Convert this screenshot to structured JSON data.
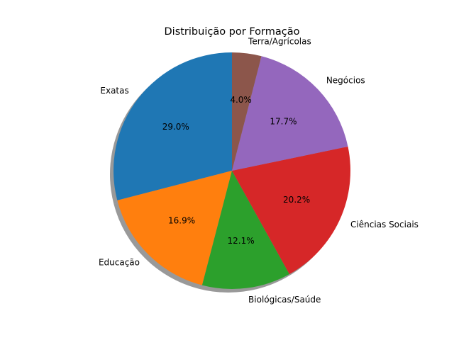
{
  "chart_data": {
    "type": "pie",
    "title": "Distribuição por Formação",
    "labels": [
      "Exatas",
      "Educação",
      "Biológicas/Saúde",
      "Ciências Sociais",
      "Negócios",
      "Terra/Agrícolas"
    ],
    "values": [
      29.0,
      16.9,
      12.1,
      20.2,
      17.7,
      4.0
    ],
    "value_labels": [
      "29.0%",
      "16.9%",
      "12.1%",
      "20.2%",
      "17.7%",
      "4.0%"
    ],
    "colors": [
      "#1f77b4",
      "#ff7f0e",
      "#2ca02c",
      "#d62728",
      "#9467bd",
      "#8c564b"
    ],
    "start_angle_deg": 90,
    "direction": "counterclockwise",
    "shadow": true
  }
}
